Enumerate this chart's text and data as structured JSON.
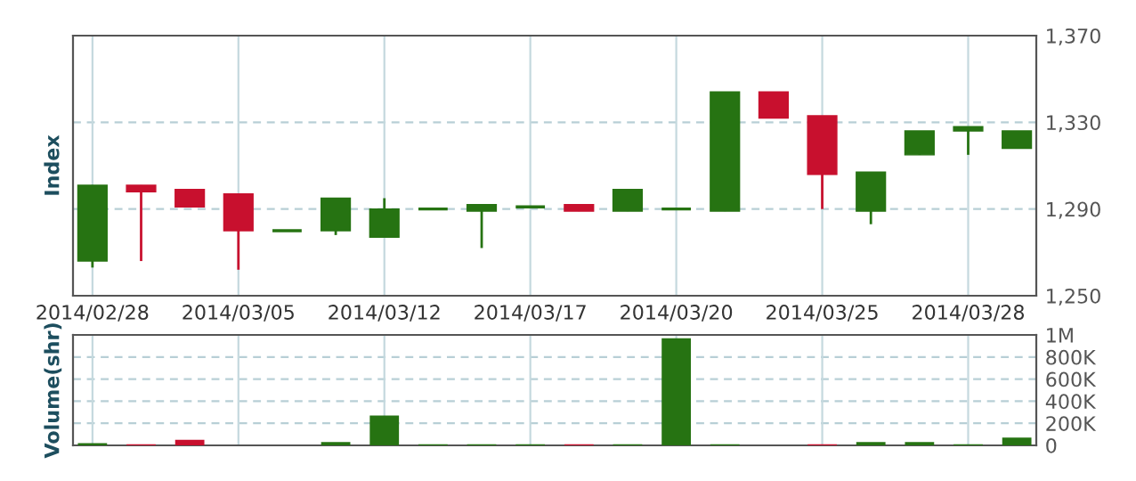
{
  "chart_data": [
    {
      "type": "candlestick",
      "ylabel": "Index",
      "categories": [
        "2014/02/28",
        null,
        null,
        "2014/03/05",
        null,
        null,
        "2014/03/12",
        null,
        null,
        "2014/03/17",
        null,
        null,
        "2014/03/20",
        null,
        null,
        "2014/03/25",
        null,
        null,
        "2014/03/28",
        null
      ],
      "ohlc": [
        [
          1266,
          1301,
          1263,
          1301
        ],
        [
          1301,
          1301,
          1266,
          1298
        ],
        [
          1299,
          1299,
          1291,
          1291
        ],
        [
          1297,
          1297,
          1262,
          1280
        ],
        [
          1280,
          1280,
          1280,
          1280
        ],
        [
          1280,
          1295,
          1278,
          1295
        ],
        [
          1277,
          1295,
          1277,
          1290
        ],
        [
          1290,
          1290,
          1290,
          1290
        ],
        [
          1289,
          1292,
          1272,
          1292
        ],
        [
          1291,
          1291,
          1291,
          1291
        ],
        [
          1292,
          1292,
          1289,
          1289
        ],
        [
          1289,
          1299,
          1289,
          1299
        ],
        [
          1290,
          1290,
          1290,
          1290
        ],
        [
          1289,
          1344,
          1289,
          1344
        ],
        [
          1344,
          1344,
          1332,
          1332
        ],
        [
          1333,
          1333,
          1290,
          1306
        ],
        [
          1289,
          1307,
          1283,
          1307
        ],
        [
          1315,
          1326,
          1315,
          1326
        ],
        [
          1326,
          1328,
          1315,
          1328
        ],
        [
          1318,
          1326,
          1318,
          1326
        ]
      ],
      "ylim": [
        1250,
        1370
      ],
      "yticks": [
        {
          "value": 1250,
          "label": "1,250"
        },
        {
          "value": 1290,
          "label": "1,290"
        },
        {
          "value": 1330,
          "label": "1,330"
        },
        {
          "value": 1370,
          "label": "1,370"
        }
      ],
      "grid": true
    },
    {
      "type": "bar",
      "ylabel": "Volume(shr)",
      "categories": [
        null,
        null,
        null,
        null,
        null,
        null,
        null,
        null,
        null,
        null,
        null,
        null,
        null,
        null,
        null,
        null,
        null,
        null,
        null,
        null
      ],
      "values": [
        20000,
        10000,
        50000,
        null,
        null,
        30000,
        270000,
        10000,
        10000,
        10000,
        10000,
        10000,
        970000,
        10000,
        null,
        10000,
        30000,
        30000,
        10000,
        70000
      ],
      "colors": [
        "#267312",
        "#c8102e",
        "#c8102e",
        "#c0c0c0",
        "#c0c0c0",
        "#267312",
        "#267312",
        "#267312",
        "#267312",
        "#267312",
        "#c8102e",
        "#267312",
        "#267312",
        "#267312",
        "#c0c0c0",
        "#c8102e",
        "#267312",
        "#267312",
        "#267312",
        "#267312"
      ],
      "ylim": [
        0,
        1000000
      ],
      "yticks": [
        {
          "value": 0,
          "label": "0"
        },
        {
          "value": 200000,
          "label": "200K"
        },
        {
          "value": 400000,
          "label": "400K"
        },
        {
          "value": 600000,
          "label": "600K"
        },
        {
          "value": 800000,
          "label": "800K"
        },
        {
          "value": 1000000,
          "label": "1M"
        }
      ],
      "tick_labels": "y",
      "grid": true
    }
  ]
}
